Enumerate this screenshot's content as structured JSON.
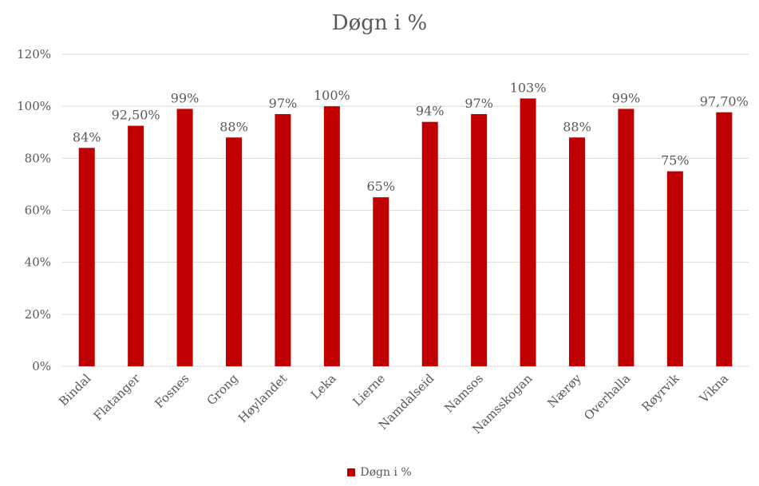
{
  "chart_data": {
    "type": "bar",
    "title": "Døgn i %",
    "xlabel": "",
    "ylabel": "",
    "categories": [
      "Bindal",
      "Flatanger",
      "Fosnes",
      "Grong",
      "Høylandet",
      "Leka",
      "Lierne",
      "Namdalseid",
      "Namsos",
      "Namsskogan",
      "Nærøy",
      "Overhalla",
      "Røyrvik",
      "Vikna"
    ],
    "series": [
      {
        "name": "Døgn i %",
        "values": [
          84,
          92.5,
          99,
          88,
          97,
          100,
          65,
          94,
          97,
          103,
          88,
          99,
          75,
          97.7
        ],
        "data_labels": [
          "84%",
          "92,50%",
          "99%",
          "88%",
          "97%",
          "100%",
          "65%",
          "94%",
          "97%",
          "103%",
          "88%",
          "99%",
          "75%",
          "97,70%"
        ],
        "color": "#C00000"
      }
    ],
    "ylim": [
      0,
      120
    ],
    "y_ticks": [
      0,
      20,
      40,
      60,
      80,
      100,
      120
    ],
    "y_tick_labels": [
      "0%",
      "20%",
      "40%",
      "60%",
      "80%",
      "100%",
      "120%"
    ],
    "grid": true,
    "gridline_color": "#d9d9d9",
    "legend_position": "bottom"
  }
}
